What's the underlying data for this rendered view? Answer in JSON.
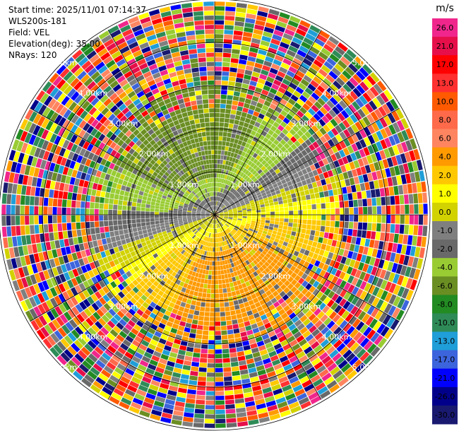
{
  "header": {
    "start_time": "Start time: 2025/11/01 07:14:37",
    "instrument": "WLS200s-181",
    "field": "Field: VEL",
    "elevation": "Elevation(deg): 35.00",
    "nrays": "NRays: 120"
  },
  "chart_data": {
    "type": "heatmap",
    "projection": "polar (PPI)",
    "field": "VEL",
    "units": "m/s",
    "n_rays": 120,
    "range_ring_labels": [
      "1.00km",
      "2.00km",
      "3.00km",
      "4.00km",
      "5.00km"
    ],
    "range_rings_km": [
      1,
      2,
      3,
      4,
      5
    ],
    "colorbar": {
      "title": "m/s",
      "ticks": [
        "26.0",
        "21.0",
        "17.0",
        "13.0",
        "10.0",
        "8.0",
        "6.0",
        "4.0",
        "2.0",
        "1.0",
        "0.0",
        "-1.0",
        "-2.0",
        "-4.0",
        "-6.0",
        "-8.0",
        "-10.0",
        "-13.0",
        "-17.0",
        "-21.0",
        "-26.0",
        "-30.0"
      ],
      "colors": [
        "#f0268c",
        "#e60f4a",
        "#ff0000",
        "#ff3030",
        "#ff5a00",
        "#ff6a4a",
        "#ff8560",
        "#ff9a00",
        "#ffc800",
        "#ffff00",
        "#d2d200",
        "#7f7f7f",
        "#696969",
        "#99cc33",
        "#6b8e23",
        "#228b22",
        "#2e8b57",
        "#1f9ed8",
        "#3c64dc",
        "#0000ff",
        "#00008b",
        "#191970"
      ]
    }
  }
}
